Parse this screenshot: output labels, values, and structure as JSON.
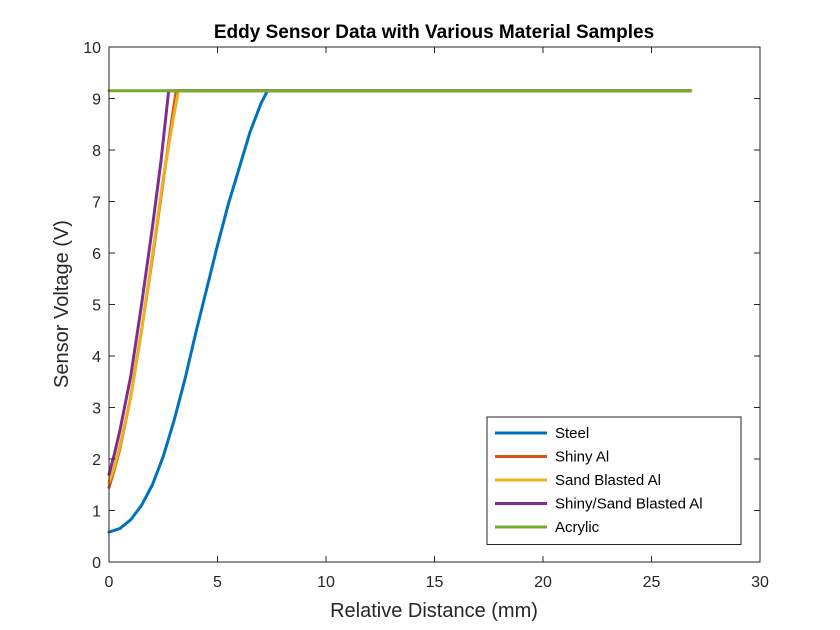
{
  "chart_data": {
    "type": "line",
    "title": "Eddy Sensor Data with Various Material Samples",
    "xlabel": "Relative Distance (mm)",
    "ylabel": "Sensor Voltage (V)",
    "xlim": [
      0,
      30
    ],
    "ylim": [
      0,
      10
    ],
    "x_ticks": [
      "0",
      "5",
      "10",
      "15",
      "20",
      "25",
      "30"
    ],
    "y_ticks": [
      "0",
      "1",
      "2",
      "3",
      "4",
      "5",
      "6",
      "7",
      "8",
      "9",
      "10"
    ],
    "grid": false,
    "legend_position": "bottom-right",
    "series": [
      {
        "name": "Steel",
        "color": "#0072BD",
        "x": [
          0,
          0.5,
          1,
          1.5,
          2,
          2.5,
          3,
          3.5,
          4,
          4.5,
          5,
          5.5,
          6,
          6.5,
          7,
          7.3,
          10,
          15,
          20,
          25,
          26.8
        ],
        "y": [
          0.58,
          0.65,
          0.82,
          1.1,
          1.5,
          2.05,
          2.75,
          3.55,
          4.45,
          5.3,
          6.15,
          6.95,
          7.65,
          8.35,
          8.9,
          9.15,
          9.15,
          9.15,
          9.15,
          9.15,
          9.15
        ]
      },
      {
        "name": "Shiny Al",
        "color": "#D95319",
        "x": [
          0,
          0.25,
          0.5,
          1,
          1.5,
          2,
          2.5,
          2.9,
          3.1,
          10,
          20,
          26.8
        ],
        "y": [
          1.45,
          1.8,
          2.2,
          3.2,
          4.5,
          5.9,
          7.4,
          8.6,
          9.15,
          9.15,
          9.15,
          9.15
        ]
      },
      {
        "name": "Sand Blasted Al",
        "color": "#EDB120",
        "x": [
          0,
          0.25,
          0.5,
          1,
          1.5,
          2,
          2.5,
          3,
          3.2,
          10,
          20,
          26.8
        ],
        "y": [
          1.55,
          1.85,
          2.25,
          3.2,
          4.5,
          5.95,
          7.45,
          8.7,
          9.15,
          9.15,
          9.15,
          9.15
        ]
      },
      {
        "name": "Shiny/Sand Blasted Al",
        "color": "#7E2F8E",
        "x": [
          0,
          0.25,
          0.5,
          1,
          1.5,
          2,
          2.4,
          2.75,
          10,
          20,
          26.8
        ],
        "y": [
          1.7,
          2.1,
          2.55,
          3.6,
          5.0,
          6.5,
          7.8,
          9.15,
          9.15,
          9.15,
          9.15
        ]
      },
      {
        "name": "Acrylic",
        "color": "#77AC30",
        "x": [
          0,
          5,
          10,
          15,
          20,
          25,
          26.8
        ],
        "y": [
          9.15,
          9.15,
          9.15,
          9.15,
          9.15,
          9.15,
          9.15
        ]
      }
    ]
  }
}
